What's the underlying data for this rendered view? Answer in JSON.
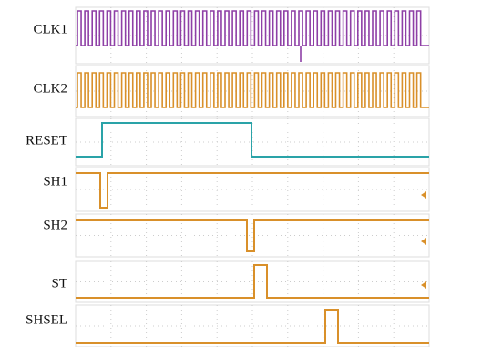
{
  "signals": [
    {
      "label": "CLK1"
    },
    {
      "label": "CLK2"
    },
    {
      "label": "RESET"
    },
    {
      "label": "SH1"
    },
    {
      "label": "SH2"
    },
    {
      "label": "ST"
    },
    {
      "label": "SHSEL"
    }
  ]
}
